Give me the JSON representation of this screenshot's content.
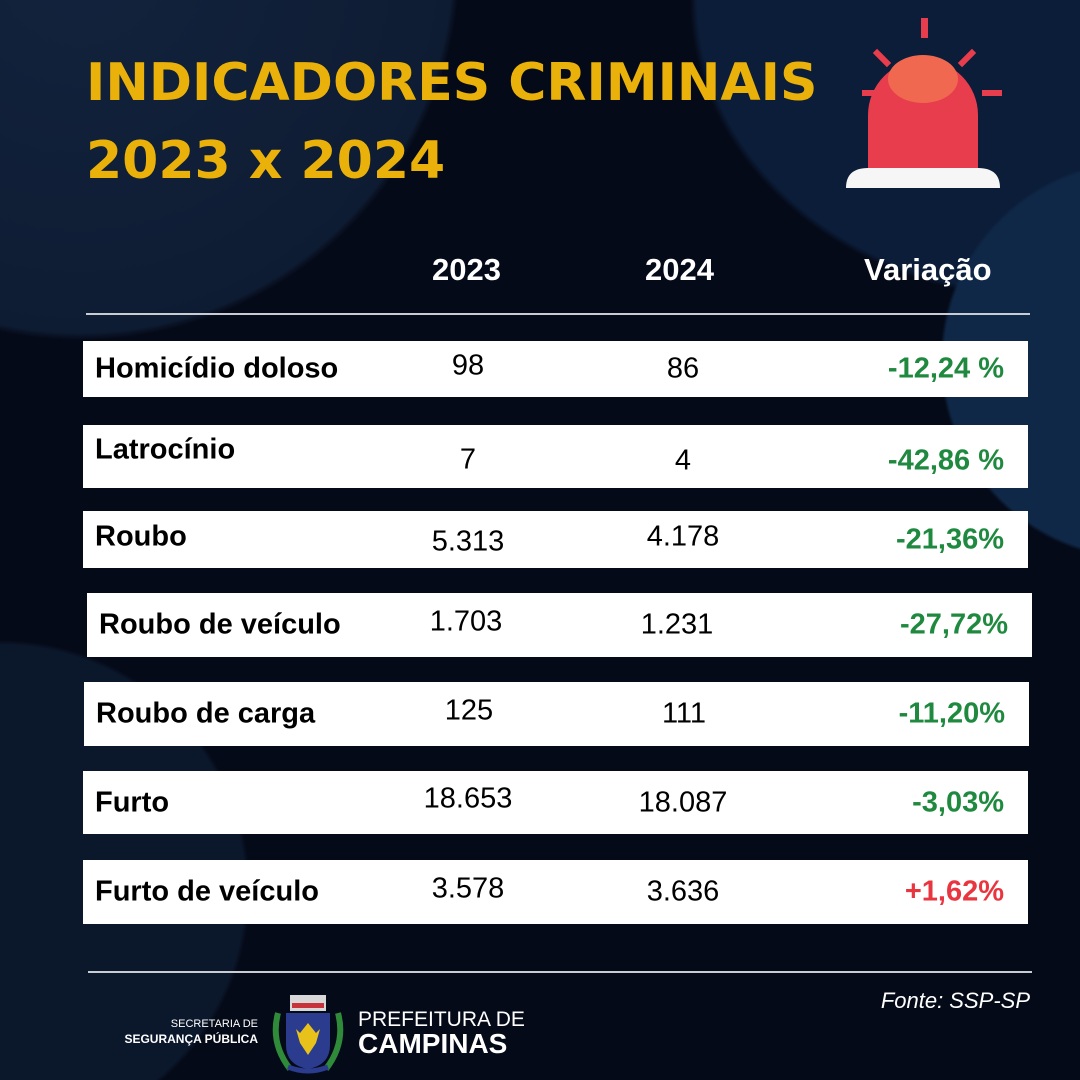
{
  "title": {
    "line1": "INDICADORES CRIMINAIS",
    "line2": "2023 x 2024"
  },
  "header": {
    "col1": "2023",
    "col2": "2024",
    "col3": "Variação"
  },
  "rows": [
    {
      "label": "Homicídio doloso",
      "y2023": "98",
      "y2024": "86",
      "variation": "-12,24 %",
      "trend": "down"
    },
    {
      "label": "Latrocínio",
      "y2023": "7",
      "y2024": "4",
      "variation": "-42,86 %",
      "trend": "down"
    },
    {
      "label": "Roubo",
      "y2023": "5.313",
      "y2024": "4.178",
      "variation": "-21,36%",
      "trend": "down"
    },
    {
      "label": "Roubo de veículo",
      "y2023": "1.703",
      "y2024": "1.231",
      "variation": "-27,72%",
      "trend": "down"
    },
    {
      "label": "Roubo de carga",
      "y2023": "125",
      "y2024": "111",
      "variation": "-11,20%",
      "trend": "down"
    },
    {
      "label": "Furto",
      "y2023": "18.653",
      "y2024": "18.087",
      "variation": "-3,03%",
      "trend": "down"
    },
    {
      "label": "Furto de veículo",
      "y2023": "3.578",
      "y2024": "3.636",
      "variation": "+1,62%",
      "trend": "up"
    }
  ],
  "footer": {
    "source": "Fonte: SSP-SP",
    "secretaria_line1": "SECRETARIA DE",
    "secretaria_line2": "SEGURANÇA PÚBLICA",
    "prefeitura_line1": "PREFEITURA DE",
    "prefeitura_line2": "CAMPINAS"
  },
  "colors": {
    "title": "#e9b10a",
    "decrease": "#1f8a3f",
    "increase": "#e8353f",
    "background": "#050a18",
    "siren": "#e83d4c"
  },
  "icons": [
    "siren-icon",
    "campinas-crest-logo"
  ]
}
